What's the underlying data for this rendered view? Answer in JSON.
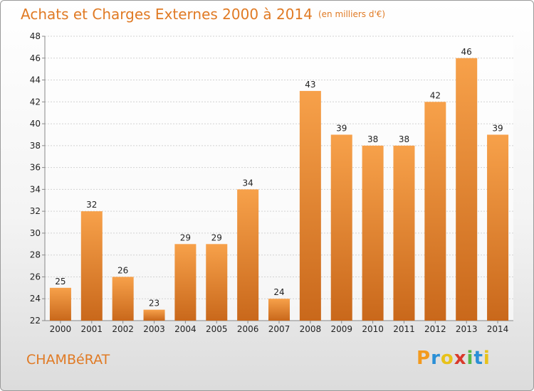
{
  "chart_data": {
    "type": "bar",
    "title": "Achats et Charges Externes 2000 à 2014",
    "subtitle": "(en milliers d'€)",
    "xlabel": "",
    "ylabel": "",
    "categories": [
      "2000",
      "2001",
      "2002",
      "2003",
      "2004",
      "2005",
      "2006",
      "2007",
      "2008",
      "2009",
      "2010",
      "2011",
      "2012",
      "2013",
      "2014"
    ],
    "values": [
      25,
      32,
      26,
      23,
      29,
      29,
      34,
      24,
      43,
      39,
      38,
      38,
      42,
      46,
      39
    ],
    "ylim": [
      22,
      48
    ],
    "yticks": [
      22,
      24,
      26,
      28,
      30,
      32,
      34,
      36,
      38,
      40,
      42,
      44,
      46,
      48
    ],
    "grid": true,
    "legend": "none",
    "bar_color": "#f28c28",
    "bar_color_dark": "#c9681b"
  },
  "footer": {
    "town": "CHAMBéRAT",
    "logo_letters": [
      "P",
      "r",
      "o",
      "x",
      "i",
      "t",
      "i"
    ],
    "logo_colors": [
      "#f39a1e",
      "#2a8fd6",
      "#e8c21a",
      "#d93a2b",
      "#58b947",
      "#2a8fd6",
      "#e8c21a"
    ]
  }
}
